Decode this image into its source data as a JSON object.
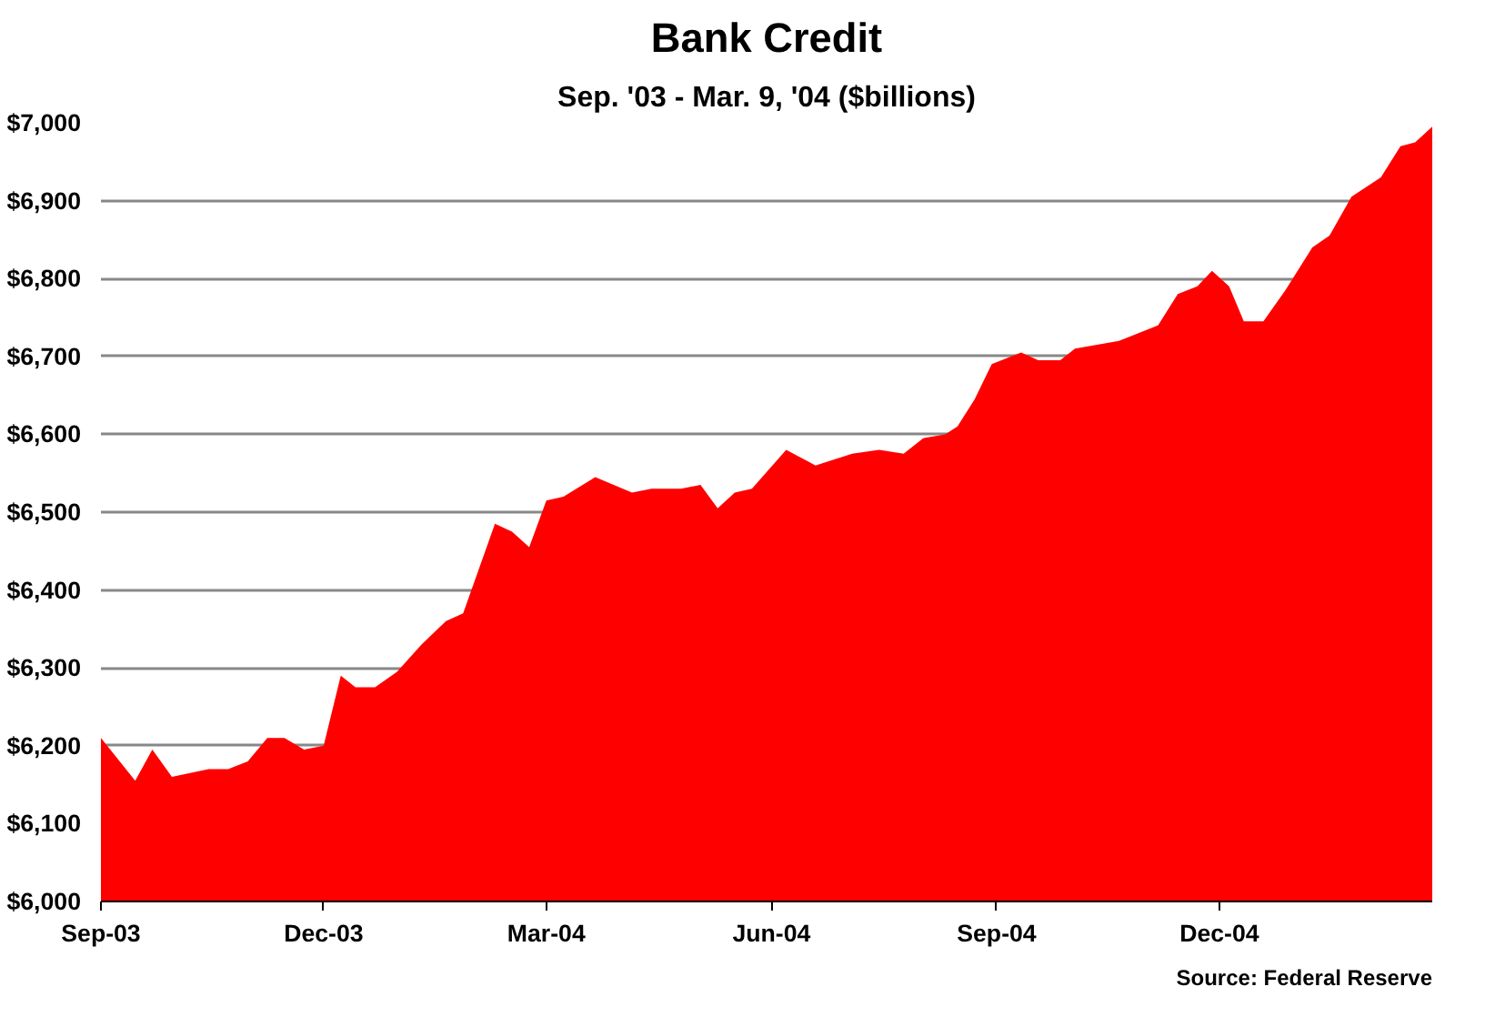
{
  "chart_data": {
    "type": "area",
    "title": "Bank Credit",
    "subtitle": "Sep. '03 - Mar. 9, '04 ($billions)",
    "x": [
      "2003-09-01",
      "2003-09-15",
      "2003-09-22",
      "2003-09-30",
      "2003-10-15",
      "2003-10-23",
      "2003-10-31",
      "2003-11-08",
      "2003-11-15",
      "2003-11-23",
      "2003-12-01",
      "2003-12-08",
      "2003-12-14",
      "2003-12-22",
      "2003-12-31",
      "2004-01-10",
      "2004-01-20",
      "2004-01-27",
      "2004-02-09",
      "2004-02-16",
      "2004-02-23",
      "2004-03-01",
      "2004-03-08",
      "2004-03-21",
      "2004-04-05",
      "2004-04-13",
      "2004-04-25",
      "2004-05-03",
      "2004-05-10",
      "2004-05-17",
      "2004-05-24",
      "2004-06-07",
      "2004-06-19",
      "2004-07-04",
      "2004-07-15",
      "2004-07-25",
      "2004-08-02",
      "2004-08-11",
      "2004-08-16",
      "2004-08-23",
      "2004-08-30",
      "2004-09-11",
      "2004-09-18",
      "2004-09-27",
      "2004-10-03",
      "2004-10-21",
      "2004-11-06",
      "2004-11-14",
      "2004-11-22",
      "2004-11-28",
      "2004-12-05",
      "2004-12-11",
      "2004-12-19",
      "2004-12-28",
      "2005-01-08",
      "2005-01-15",
      "2005-01-24",
      "2005-02-05",
      "2005-02-13",
      "2005-02-19",
      "2005-02-26"
    ],
    "series": [
      {
        "color": "#ff0000",
        "values": [
          6210,
          6155,
          6195,
          6160,
          6170,
          6170,
          6180,
          6210,
          6210,
          6195,
          6200,
          6290,
          6275,
          6275,
          6295,
          6330,
          6360,
          6370,
          6485,
          6475,
          6455,
          6515,
          6520,
          6545,
          6525,
          6530,
          6530,
          6535,
          6505,
          6525,
          6530,
          6580,
          6560,
          6575,
          6580,
          6575,
          6595,
          6600,
          6610,
          6645,
          6690,
          6705,
          6695,
          6695,
          6710,
          6720,
          6740,
          6780,
          6790,
          6810,
          6790,
          6745,
          6745,
          6785,
          6840,
          6855,
          6905,
          6930,
          6970,
          6975,
          6995
        ]
      }
    ],
    "xlim": [
      "2003-09-01",
      "2005-02-26"
    ],
    "xticks": [
      {
        "value": "2003-09-01",
        "label": "Sep-03"
      },
      {
        "value": "2003-12-01",
        "label": "Dec-03"
      },
      {
        "value": "2004-03-01",
        "label": "Mar-04"
      },
      {
        "value": "2004-06-01",
        "label": "Jun-04"
      },
      {
        "value": "2004-09-01",
        "label": "Sep-04"
      },
      {
        "value": "2004-12-01",
        "label": "Dec-04"
      }
    ],
    "ylim": [
      6000,
      7000
    ],
    "yticks": [
      {
        "value": 6000,
        "label": "$6,000"
      },
      {
        "value": 6100,
        "label": "$6,100"
      },
      {
        "value": 6200,
        "label": "$6,200"
      },
      {
        "value": 6300,
        "label": "$6,300"
      },
      {
        "value": 6400,
        "label": "$6,400"
      },
      {
        "value": 6500,
        "label": "$6,500"
      },
      {
        "value": 6600,
        "label": "$6,600"
      },
      {
        "value": 6700,
        "label": "$6,700"
      },
      {
        "value": 6800,
        "label": "$6,800"
      },
      {
        "value": 6900,
        "label": "$6,900"
      },
      {
        "value": 7000,
        "label": "$7,000"
      }
    ],
    "grid": "y",
    "annotations": [
      "Source: Federal Reserve"
    ]
  }
}
